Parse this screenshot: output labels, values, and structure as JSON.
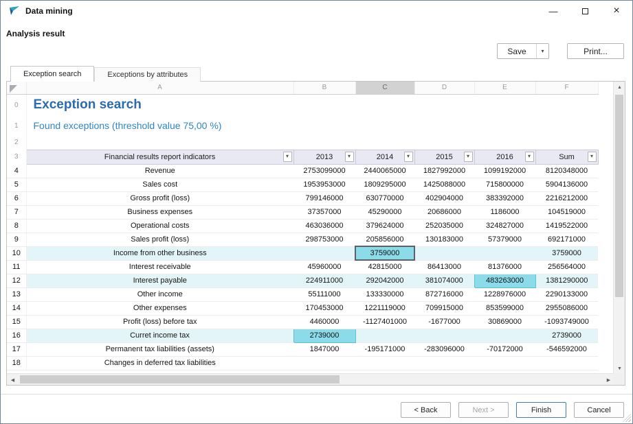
{
  "window": {
    "title": "Data mining"
  },
  "icons": {
    "minimize": "—",
    "close": "×",
    "save_dropdown": "▾",
    "filter_arrow": "▾",
    "scroll_up": "▲",
    "scroll_down": "▼",
    "scroll_left": "◀",
    "scroll_right": "▶"
  },
  "header": {
    "section_title": "Analysis result",
    "save_label": "Save",
    "print_label": "Print..."
  },
  "tabs": [
    {
      "label": "Exception search",
      "active": true
    },
    {
      "label": "Exceptions by attributes",
      "active": false
    }
  ],
  "sheet": {
    "column_letters": [
      "A",
      "B",
      "C",
      "D",
      "E",
      "F"
    ],
    "selected_letter": "C",
    "title_row": {
      "num": "0",
      "text": "Exception search"
    },
    "subtitle_row": {
      "num": "1",
      "text": "Found exceptions (threshold value 75,00 %)"
    },
    "empty_row": {
      "num": "2"
    },
    "header_row": {
      "num": "3",
      "cells": [
        "Financial results report indicators",
        "2013",
        "2014",
        "2015",
        "2016",
        "Sum"
      ]
    },
    "rows": [
      {
        "num": "4",
        "label": "Revenue",
        "values": [
          "2753099000",
          "2440065000",
          "1827992000",
          "1099192000",
          "8120348000"
        ]
      },
      {
        "num": "5",
        "label": "Sales cost",
        "values": [
          "1953953000",
          "1809295000",
          "1425088000",
          "715800000",
          "5904136000"
        ]
      },
      {
        "num": "6",
        "label": "Gross profit (loss)",
        "values": [
          "799146000",
          "630770000",
          "402904000",
          "383392000",
          "2216212000"
        ]
      },
      {
        "num": "7",
        "label": "Business expenses",
        "values": [
          "37357000",
          "45290000",
          "20686000",
          "1186000",
          "104519000"
        ]
      },
      {
        "num": "8",
        "label": "Operational costs",
        "values": [
          "463036000",
          "379624000",
          "252035000",
          "324827000",
          "1419522000"
        ]
      },
      {
        "num": "9",
        "label": "Sales profit (loss)",
        "values": [
          "298753000",
          "205856000",
          "130183000",
          "57379000",
          "692171000"
        ]
      },
      {
        "num": "10",
        "label": "Income from other business",
        "values": [
          "",
          "3759000",
          "",
          "",
          "3759000"
        ],
        "row_highlight": true,
        "highlight_cell": 1,
        "selected_cell": 1
      },
      {
        "num": "11",
        "label": "Interest receivable",
        "values": [
          "45960000",
          "42815000",
          "86413000",
          "81376000",
          "256564000"
        ]
      },
      {
        "num": "12",
        "label": "Interest payable",
        "values": [
          "224911000",
          "292042000",
          "381074000",
          "483263000",
          "1381290000"
        ],
        "row_highlight": true,
        "highlight_cell": 3
      },
      {
        "num": "13",
        "label": "Other income",
        "values": [
          "55111000",
          "133330000",
          "872716000",
          "1228976000",
          "2290133000"
        ]
      },
      {
        "num": "14",
        "label": "Other expenses",
        "values": [
          "170453000",
          "1221119000",
          "709915000",
          "853599000",
          "2955086000"
        ]
      },
      {
        "num": "15",
        "label": "Profit (loss) before tax",
        "values": [
          "4460000",
          "-1127401000",
          "-1677000",
          "30869000",
          "-1093749000"
        ]
      },
      {
        "num": "16",
        "label": "Curret income tax",
        "values": [
          "2739000",
          "",
          "",
          "",
          "2739000"
        ],
        "row_highlight": true,
        "highlight_cell": 0
      },
      {
        "num": "17",
        "label": "Permanent tax liabilities (assets)",
        "values": [
          "1847000",
          "-195171000",
          "-283096000",
          "-70172000",
          "-546592000"
        ]
      },
      {
        "num": "18",
        "label": "Changes in deferred tax liabilities",
        "values": [
          "",
          "",
          "",
          "",
          ""
        ]
      }
    ],
    "colors": {
      "title_blue": "#2b6cad",
      "subtitle_blue": "#2e86c6",
      "header_bg": "#e9e9f3",
      "highlight_row_bg": "#e3f5f9",
      "highlight_cell_bg": "#8cdbe9",
      "selected_column_bg": "#d2d2d2"
    }
  },
  "footer": {
    "back": "< Back",
    "next": "Next >",
    "finish": "Finish",
    "cancel": "Cancel"
  }
}
